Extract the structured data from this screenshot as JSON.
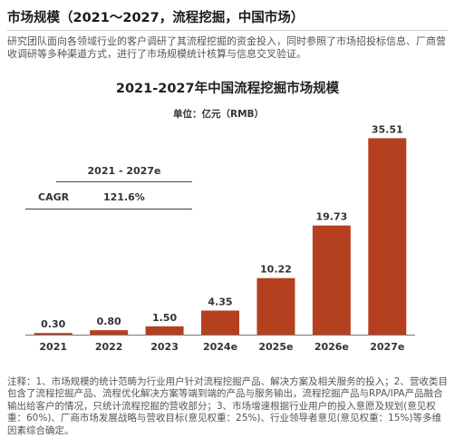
{
  "header": {
    "title": "市场规模（2021～2027，流程挖掘，中国市场）"
  },
  "intro": "研究团队面向各领域行业的客户调研了其流程挖掘的资金投入，同时参照了市场招投标信息、厂商营收调研等多种渠道方式，进行了市场规模统计核算与信息交叉验证。",
  "cagr": {
    "period": "2021 - 2027e",
    "label": "CAGR",
    "value": "121.6%"
  },
  "chart_data": {
    "type": "bar",
    "title": "2021-2027年中国流程挖掘市场规模",
    "unit": "单位：亿元（RMB）",
    "categories": [
      "2021",
      "2022",
      "2023",
      "2024e",
      "2025e",
      "2026e",
      "2027e"
    ],
    "values": [
      0.3,
      0.8,
      1.5,
      4.35,
      10.22,
      19.73,
      35.51
    ],
    "value_labels": [
      "0.30",
      "0.80",
      "1.50",
      "4.35",
      "10.22",
      "19.73",
      "35.51"
    ],
    "ylim": [
      0,
      40
    ],
    "bar_color": "#B5401F",
    "grid": false,
    "legend": "none"
  },
  "notes": "注释：1、市场规模的统计范畴为行业用户针对流程挖掘产品、解决方案及相关服务的投入；2、营收类目包含了流程挖掘产品、流程优化解决方案等端到端的产品与服务输出，流程挖掘产品与RPA/IPA产品融合输出给客户的情况，只统计流程挖掘的营收部分；3、市场增速根据行业用户的投入意愿及规划(意见权重：60%)、厂商市场发展战略与营收目标(意见权重：25%)、行业领导者意见(意见权重：15%)等多维因素综合确定。"
}
